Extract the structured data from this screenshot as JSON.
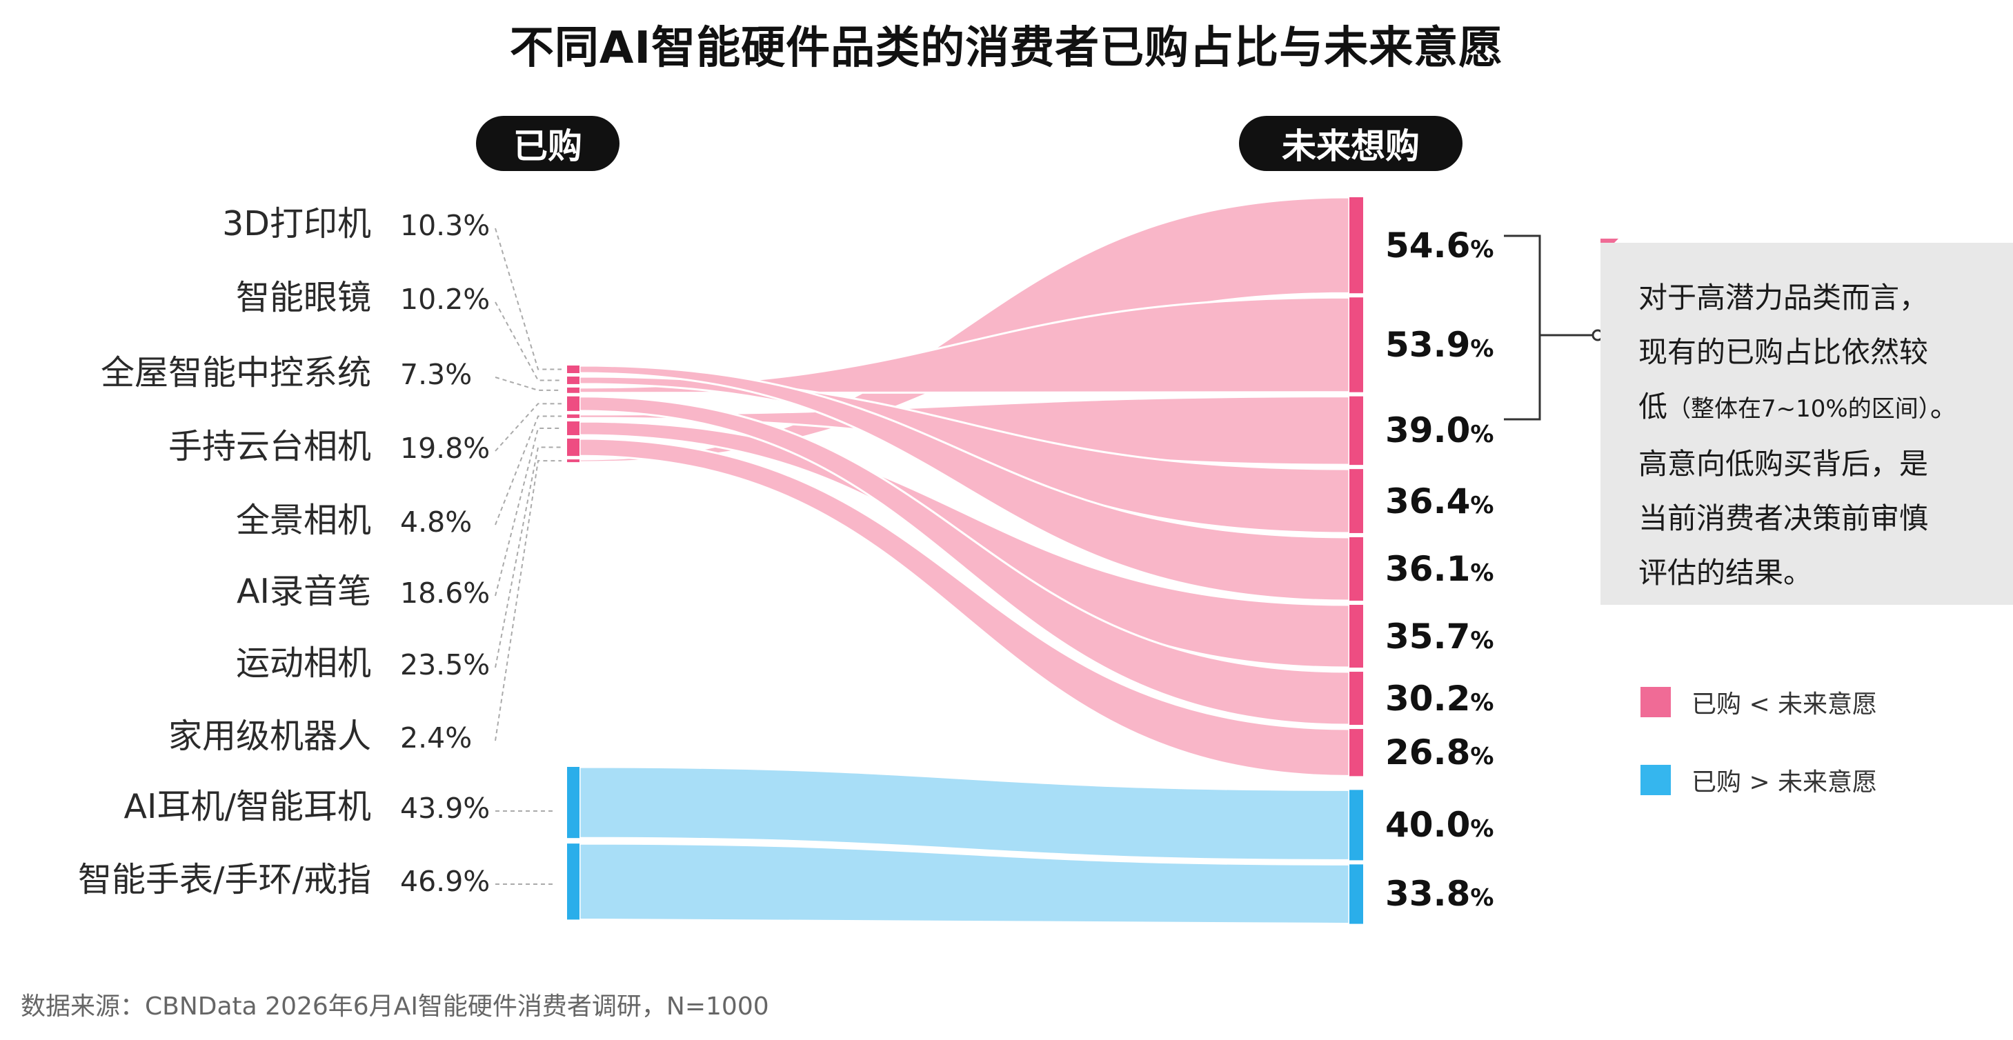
{
  "title": "不同AI智能硬件品类的消费者已购占比与未来意愿",
  "left_header": "已购",
  "right_header": "未来想购",
  "chart_data": {
    "type": "sankey",
    "title": "不同AI智能硬件品类的消费者已购占比与未来意愿",
    "left_axis_label": "已购",
    "right_axis_label": "未来想购",
    "categories": [
      "3D打印机",
      "智能眼镜",
      "全屋智能中控系统",
      "手持云台相机",
      "全景相机",
      "AI录音笔",
      "运动相机",
      "家用级机器人",
      "AI耳机/智能耳机",
      "智能手表/手环/戒指"
    ],
    "purchased": [
      10.3,
      10.2,
      7.3,
      19.8,
      4.8,
      18.6,
      23.5,
      2.4,
      43.9,
      46.9
    ],
    "purchased_labels": [
      "10.3%",
      "10.2%",
      "7.3%",
      "19.8%",
      "4.8%",
      "18.6%",
      "23.5%",
      "2.4%",
      "43.9%",
      "46.9%"
    ],
    "future_intent": [
      54.6,
      53.9,
      39.0,
      36.4,
      36.1,
      35.7,
      30.2,
      26.8,
      40.0,
      33.8
    ],
    "future_labels": [
      "54.6",
      "53.9",
      "39.0",
      "36.4",
      "36.1",
      "35.7",
      "30.2",
      "26.8",
      "40.0",
      "33.8"
    ],
    "future_unit": "%",
    "flow_map": [
      {
        "from": 7,
        "to": 0,
        "group": "pink"
      },
      {
        "from": 2,
        "to": 1,
        "group": "pink"
      },
      {
        "from": 4,
        "to": 2,
        "group": "pink"
      },
      {
        "from": 1,
        "to": 3,
        "group": "pink"
      },
      {
        "from": 0,
        "to": 4,
        "group": "pink"
      },
      {
        "from": 5,
        "to": 5,
        "group": "pink"
      },
      {
        "from": 3,
        "to": 6,
        "group": "pink"
      },
      {
        "from": 6,
        "to": 7,
        "group": "pink"
      },
      {
        "from": 8,
        "to": 8,
        "group": "blue"
      },
      {
        "from": 9,
        "to": 9,
        "group": "blue"
      }
    ],
    "legend": [
      {
        "label": "已购 < 未来意愿",
        "color": "#f06b96"
      },
      {
        "label": "已购 > 未来意愿",
        "color": "#35b6ee"
      }
    ]
  },
  "annotation": {
    "lines": [
      "对于高潜力品类而言，",
      "现有的已购占比依然较"
    ],
    "line3_start": "低",
    "line3_paren": "（整体在7~10%的区间）",
    "line3_end": "。",
    "lines_after": [
      "高意向低购买背后，是",
      "当前消费者决策前审慎",
      "评估的结果。"
    ]
  },
  "source": "数据来源：CBNData 2026年6月AI智能硬件消费者调研，N=1000",
  "colors": {
    "pink_flow": "#f9b6c8",
    "pink_bar": "#ee4d82",
    "blue_flow": "#a8def7",
    "blue_bar": "#2aaeea",
    "annotation_bg": "#e8e8e8"
  }
}
